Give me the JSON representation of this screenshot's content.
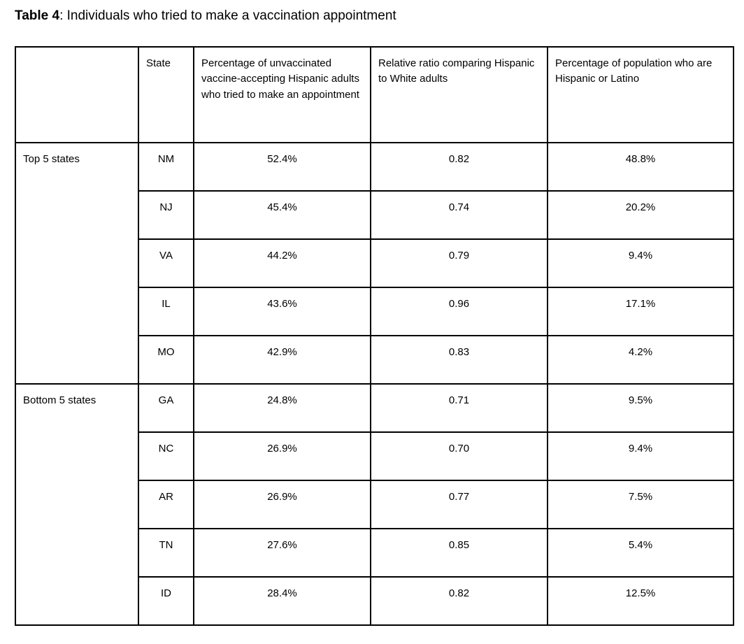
{
  "page_title": {
    "label": "Table 4",
    "rest": ": Individuals who tried to make a vaccination appointment"
  },
  "table": {
    "columns": [
      "",
      "State",
      "Percentage of unvaccinated vaccine-accepting Hispanic adults who tried to make an appointment",
      "Relative ratio comparing Hispanic to White adults",
      "Percentage of population who are Hispanic or Latino"
    ],
    "groups": [
      {
        "label": "Top 5 states",
        "rows": [
          {
            "state": "NM",
            "pct_tried": "52.4%",
            "ratio": "0.82",
            "pct_population": "48.8%"
          },
          {
            "state": "NJ",
            "pct_tried": "45.4%",
            "ratio": "0.74",
            "pct_population": "20.2%"
          },
          {
            "state": "VA",
            "pct_tried": "44.2%",
            "ratio": "0.79",
            "pct_population": "9.4%"
          },
          {
            "state": "IL",
            "pct_tried": "43.6%",
            "ratio": "0.96",
            "pct_population": "17.1%"
          },
          {
            "state": "MO",
            "pct_tried": "42.9%",
            "ratio": "0.83",
            "pct_population": "4.2%"
          }
        ]
      },
      {
        "label": "Bottom 5 states",
        "rows": [
          {
            "state": "GA",
            "pct_tried": "24.8%",
            "ratio": "0.71",
            "pct_population": "9.5%"
          },
          {
            "state": "NC",
            "pct_tried": "26.9%",
            "ratio": "0.70",
            "pct_population": "9.4%"
          },
          {
            "state": "AR",
            "pct_tried": "26.9%",
            "ratio": "0.77",
            "pct_population": "7.5%"
          },
          {
            "state": "TN",
            "pct_tried": "27.6%",
            "ratio": "0.85",
            "pct_population": "5.4%"
          },
          {
            "state": "ID",
            "pct_tried": "28.4%",
            "ratio": "0.82",
            "pct_population": "12.5%"
          }
        ]
      }
    ]
  }
}
